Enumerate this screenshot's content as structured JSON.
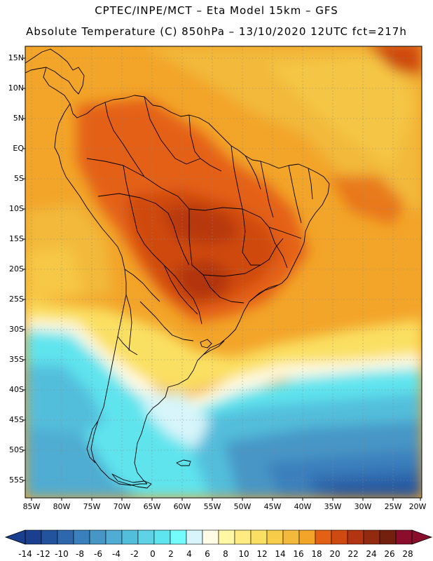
{
  "header": {
    "title_line1": "CPTEC/INPE/MCT –  Eta Model 15km – GFS",
    "title_line2": "Absolute Temperature (C) 850hPa – 13/10/2020 12UTC fct=217h"
  },
  "map": {
    "variable": "Absolute Temperature",
    "units": "C",
    "level": "850hPa",
    "lon_range": [
      -85,
      -20
    ],
    "lat_range": [
      -58,
      17
    ],
    "lat_labels": [
      "15N",
      "10N",
      "5N",
      "EQ",
      "5S",
      "10S",
      "15S",
      "20S",
      "25S",
      "30S",
      "35S",
      "40S",
      "45S",
      "50S",
      "55S"
    ],
    "lon_labels": [
      "85W",
      "80W",
      "75W",
      "70W",
      "65W",
      "60W",
      "55W",
      "50W",
      "45W",
      "40W",
      "35W",
      "30W",
      "25W",
      "20W"
    ]
  },
  "colorbar": {
    "labels": [
      "-14",
      "-12",
      "-10",
      "-8",
      "-6",
      "-4",
      "-2",
      "0",
      "2",
      "4",
      "6",
      "8",
      "10",
      "12",
      "14",
      "16",
      "18",
      "20",
      "22",
      "24",
      "26",
      "28"
    ],
    "colors": [
      "#1b3f8f",
      "#24539e",
      "#2d68ad",
      "#3a80bd",
      "#4696c6",
      "#50acd2",
      "#52bedc",
      "#5fd2e6",
      "#5ee4ee",
      "#74fbfb",
      "#d7f5fa",
      "#fffbe5",
      "#fff7a4",
      "#ffeb82",
      "#fae062",
      "#f7cc48",
      "#f2b93a",
      "#f3a529",
      "#e46014",
      "#cf4a10",
      "#b23410",
      "#922a0f",
      "#74200f",
      "#8a0d2c"
    ]
  }
}
